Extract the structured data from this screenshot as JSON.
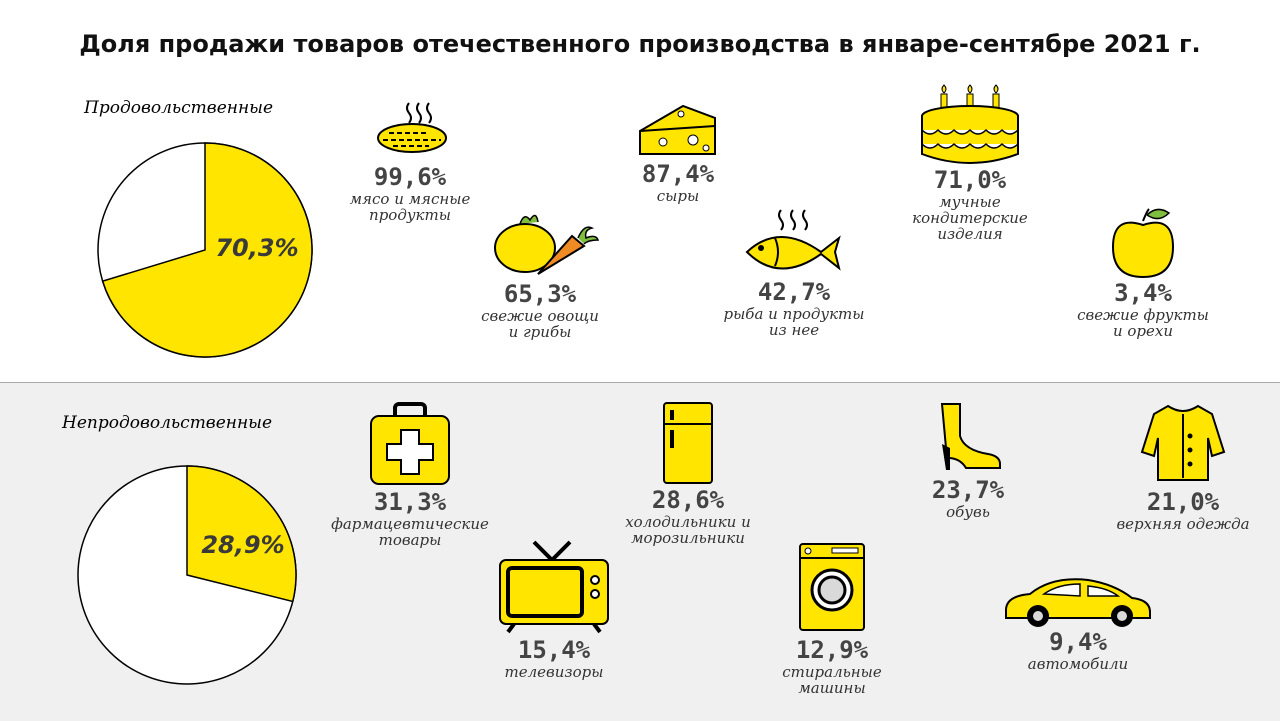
{
  "title": "Доля продажи товаров отечественного производства в январе-сентябре 2021 г.",
  "colors": {
    "accent": "#FFE500",
    "outline": "#000000",
    "band": "#F0F0F0"
  },
  "food": {
    "section_label": "Продовольственные",
    "pie_label": "70,3%",
    "items": [
      {
        "value": "99,6%",
        "label": "мясо и мясные\nпродукты",
        "icon": "steak-icon"
      },
      {
        "value": "87,4%",
        "label": "сыры",
        "icon": "cheese-icon"
      },
      {
        "value": "71,0%",
        "label": "мучные\nкондитерские\nизделия",
        "icon": "cake-icon"
      },
      {
        "value": "65,3%",
        "label": "свежие овощи\nи грибы",
        "icon": "vegetables-icon"
      },
      {
        "value": "42,7%",
        "label": "рыба и продукты\nиз нее",
        "icon": "fish-icon"
      },
      {
        "value": "3,4%",
        "label": "свежие фрукты\nи орехи",
        "icon": "apple-icon"
      }
    ]
  },
  "nonfood": {
    "section_label": "Непродовольственные",
    "pie_label": "28,9%",
    "items": [
      {
        "value": "31,3%",
        "label": "фармацевтические\nтовары",
        "icon": "first-aid-kit-icon"
      },
      {
        "value": "28,6%",
        "label": "холодильники и\nморозильники",
        "icon": "refrigerator-icon"
      },
      {
        "value": "23,7%",
        "label": "обувь",
        "icon": "boot-icon"
      },
      {
        "value": "21,0%",
        "label": "верхняя одежда",
        "icon": "coat-icon"
      },
      {
        "value": "15,4%",
        "label": "телевизоры",
        "icon": "tv-icon"
      },
      {
        "value": "12,9%",
        "label": "стиральные\nмашины",
        "icon": "washing-machine-icon"
      },
      {
        "value": "9,4%",
        "label": "автомобили",
        "icon": "car-icon"
      }
    ]
  },
  "chart_data": [
    {
      "type": "pie",
      "title": "Продовольственные",
      "categories": [
        "Продовольственные"
      ],
      "values": [
        70.3
      ],
      "labels": [
        "70,3%"
      ]
    },
    {
      "type": "pie",
      "title": "Непродовольственные",
      "categories": [
        "Непродовольственные"
      ],
      "values": [
        28.9
      ],
      "labels": [
        "28,9%"
      ]
    },
    {
      "type": "table",
      "title": "Продовольственные",
      "categories": [
        "мясо и мясные продукты",
        "сыры",
        "мучные кондитерские изделия",
        "свежие овощи и грибы",
        "рыба и продукты из нее",
        "свежие фрукты и орехи"
      ],
      "values": [
        99.6,
        87.4,
        71.0,
        65.3,
        42.7,
        3.4
      ]
    },
    {
      "type": "table",
      "title": "Непродовольственные",
      "categories": [
        "фармацевтические товары",
        "холодильники и морозильники",
        "обувь",
        "верхняя одежда",
        "телевизоры",
        "стиральные машины",
        "автомобили"
      ],
      "values": [
        31.3,
        28.6,
        23.7,
        21.0,
        15.4,
        12.9,
        9.4
      ]
    }
  ]
}
